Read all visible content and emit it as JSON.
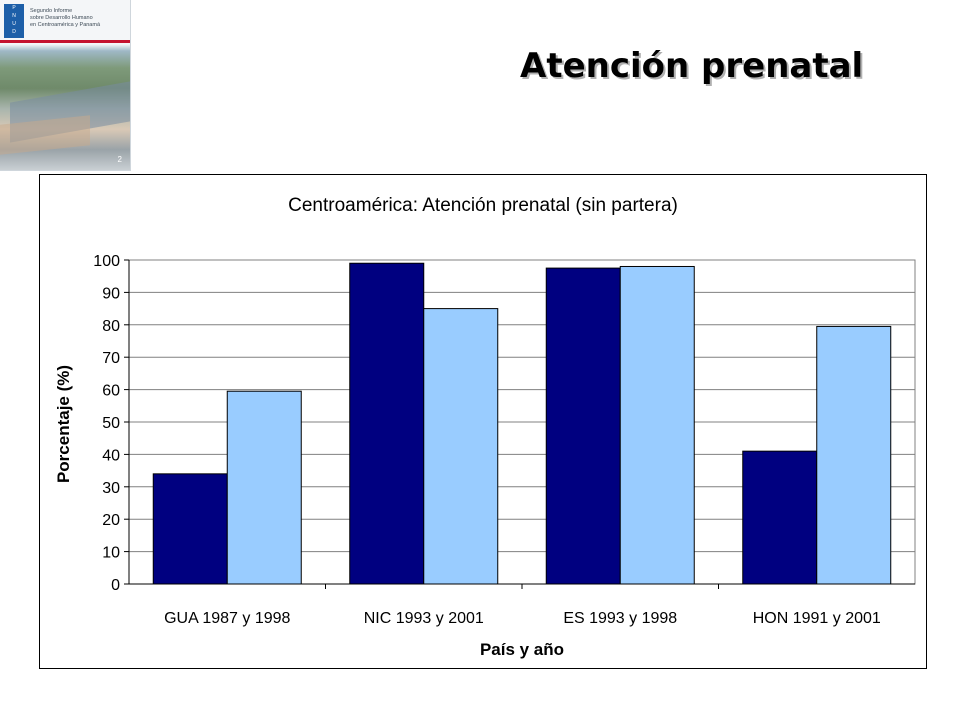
{
  "slide": {
    "title": "Atención prenatal"
  },
  "cover": {
    "text_lines": [
      "Segundo Informe",
      "sobre Desarrollo Humano",
      "en Centroamérica y Panamá"
    ],
    "logo_letters": [
      "P",
      "N",
      "U",
      "D"
    ],
    "page_number": "2"
  },
  "colors": {
    "series_dark": "#000080",
    "series_light": "#99CCFF",
    "gridline": "#808080"
  },
  "chart_data": {
    "type": "bar",
    "title": "Centroamérica: Atención prenatal (sin partera)",
    "xlabel": "País y año",
    "ylabel": "Porcentaje (%)",
    "ylim": [
      0,
      100
    ],
    "yticks": [
      0,
      10,
      20,
      30,
      40,
      50,
      60,
      70,
      80,
      90,
      100
    ],
    "grid": true,
    "legend": "none",
    "categories": [
      "GUA 1987 y 1998",
      "NIC 1993 y 2001",
      "ES 1993 y 1998",
      "HON 1991 y 2001"
    ],
    "series": [
      {
        "values": [
          34,
          99,
          97.5,
          41
        ]
      },
      {
        "values": [
          59.5,
          85,
          98,
          79.5
        ]
      }
    ]
  }
}
